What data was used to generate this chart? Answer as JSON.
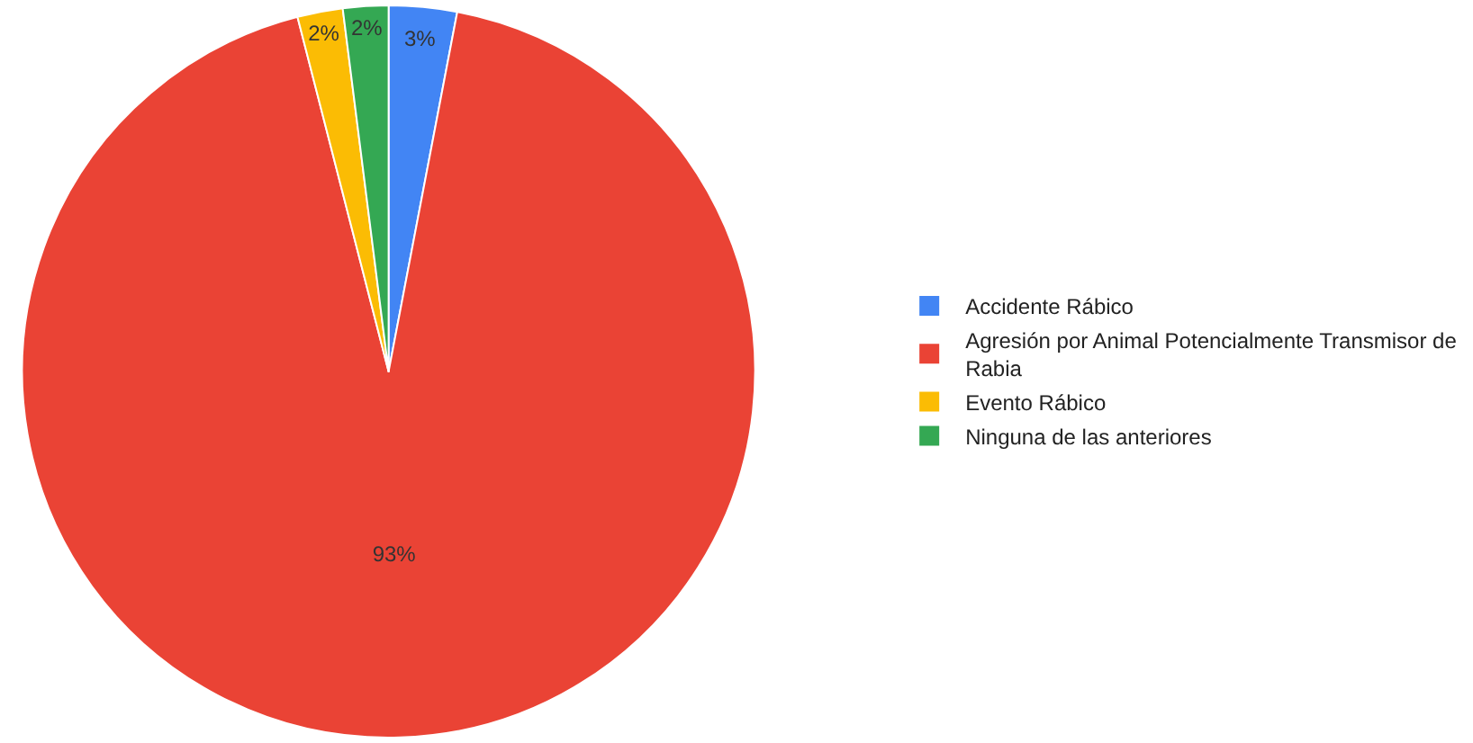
{
  "chart_data": {
    "type": "pie",
    "categories": [
      "Accidente Rábico",
      "Agresión por Animal Potencialmente Transmisor de Rabia",
      "Evento Rábico",
      "Ninguna de las anteriores"
    ],
    "values": [
      3,
      93,
      2,
      2
    ],
    "colors": [
      "#4285f4",
      "#ea4335",
      "#fbbc04",
      "#34a853"
    ],
    "value_labels": [
      "3%",
      "93%",
      "2%",
      "2%"
    ],
    "legend": "right"
  }
}
